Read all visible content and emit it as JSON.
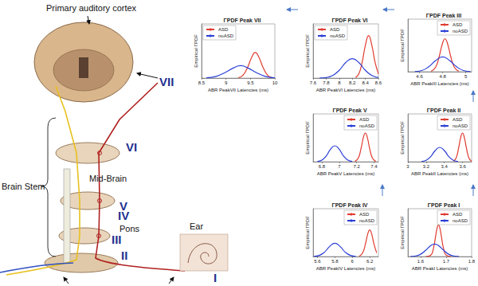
{
  "diagram": {
    "cortex_label": "Primary auditory cortex",
    "brain_stem": "Brain Stem",
    "mid_brain": "Mid-Brain",
    "pons": "Pons",
    "ear": "Ear",
    "levels": [
      "I",
      "II",
      "III",
      "IV",
      "V",
      "VI",
      "VII"
    ]
  },
  "chart_data": [
    {
      "type": "line",
      "title": "ΓPDF Peak VII",
      "x_label": "ABR PeakVII Latencies (ms)",
      "y_label": "Empirical ΓPDF",
      "xlim": [
        8.5,
        10
      ],
      "xticks": [
        8.5,
        9,
        9.5,
        10
      ],
      "ylim": [
        0,
        7
      ],
      "tick_labels": "x",
      "grid": false,
      "legend": "upper left",
      "series": [
        {
          "name": "ASD",
          "color": "#e03c31",
          "x": [
            9.25,
            9.35,
            9.45,
            9.52,
            9.6,
            9.68,
            9.75,
            9.85,
            9.95
          ],
          "values": [
            0.05,
            0.38,
            1.5,
            2.6,
            3.3,
            2.6,
            1.5,
            0.38,
            0.05
          ]
        },
        {
          "name": "noASD",
          "color": "#2b3fd6",
          "x": [
            8.6,
            8.8,
            9.0,
            9.15,
            9.3,
            9.45,
            9.6,
            9.8,
            10
          ],
          "values": [
            0.03,
            0.22,
            0.78,
            1.3,
            1.6,
            1.3,
            0.78,
            0.22,
            0.03
          ]
        }
      ]
    },
    {
      "type": "line",
      "title": "ΓPDF Peak VI",
      "x_label": "ABR PeakVI Latencies (ms)",
      "y_label": "Empirical ΓPDF",
      "xlim": [
        7.6,
        8.6
      ],
      "xticks": [
        7.6,
        7.8,
        8,
        8.2,
        8.4,
        8.6
      ],
      "ylim": [
        0,
        7
      ],
      "tick_labels": "x",
      "grid": false,
      "legend": "upper left",
      "series": [
        {
          "name": "ASD",
          "color": "#e03c31",
          "x": [
            8.25,
            8.3,
            8.35,
            8.4,
            8.45,
            8.5,
            8.55,
            8.6
          ],
          "values": [
            0.09,
            0.55,
            2.0,
            4.2,
            5.5,
            4.2,
            2.0,
            0.55
          ]
        },
        {
          "name": "noASD",
          "color": "#2b3fd6",
          "x": [
            7.7,
            7.8,
            7.9,
            8.0,
            8.1,
            8.2,
            8.3,
            8.4,
            8.5,
            8.6
          ],
          "values": [
            0.01,
            0.07,
            0.34,
            1.0,
            2.0,
            2.5,
            2.0,
            1.0,
            0.34,
            0.07
          ]
        }
      ]
    },
    {
      "type": "line",
      "title": "ΓPDF Peak III",
      "x_label": "ABR PeakIII Latencies (ms)",
      "y_label": "Empirical ΓPDF",
      "xlim": [
        4.5,
        5.05
      ],
      "xticks": [
        4.6,
        4.8,
        5
      ],
      "ylim": [
        0,
        16
      ],
      "tick_labels": "x",
      "grid": false,
      "legend": "upper right",
      "series": [
        {
          "name": "ASD",
          "color": "#e03c31",
          "x": [
            4.7,
            4.74,
            4.77,
            4.8,
            4.82,
            4.84,
            4.87,
            4.9,
            4.94
          ],
          "values": [
            0.1,
            1.4,
            4.6,
            8.8,
            10,
            8.8,
            4.6,
            1.4,
            0.1
          ]
        },
        {
          "name": "noASD",
          "color": "#2b3fd6",
          "x": [
            4.56,
            4.62,
            4.68,
            4.74,
            4.8,
            4.86,
            4.92,
            4.98,
            5.04
          ],
          "values": [
            0.05,
            0.36,
            1.5,
            3.4,
            4.5,
            3.4,
            1.5,
            0.36,
            0.05
          ]
        }
      ]
    },
    {
      "type": "line",
      "title": "ΓPDF Peak V",
      "x_label": "ABR PeakV Latencies (ms)",
      "y_label": "Empirical ΓPDF",
      "xlim": [
        6.7,
        7.45
      ],
      "xticks": [
        6.8,
        7,
        7.2,
        7.4
      ],
      "ylim": [
        0,
        15
      ],
      "tick_labels": "x",
      "grid": false,
      "legend": "upper right",
      "series": [
        {
          "name": "ASD",
          "color": "#e03c31",
          "x": [
            7.18,
            7.22,
            7.25,
            7.28,
            7.3,
            7.32,
            7.35,
            7.38,
            7.42
          ],
          "values": [
            0.1,
            1.2,
            4.1,
            7.9,
            9,
            7.9,
            4.1,
            1.2,
            0.1
          ]
        },
        {
          "name": "noASD",
          "color": "#2b3fd6",
          "x": [
            6.75,
            6.8,
            6.85,
            6.9,
            6.95,
            7.0,
            7.05,
            7.1,
            7.15
          ],
          "values": [
            0.08,
            0.5,
            1.8,
            3.9,
            5,
            3.9,
            1.8,
            0.5,
            0.08
          ]
        }
      ]
    },
    {
      "type": "line",
      "title": "ΓPDF Peak II",
      "x_label": "ABR PeakII Latencies (ms)",
      "y_label": "Empirical ΓPDF",
      "xlim": [
        3,
        3.7
      ],
      "xticks": [
        3,
        3.2,
        3.4,
        3.6
      ],
      "ylim": [
        0,
        15
      ],
      "tick_labels": "x",
      "grid": false,
      "legend": "upper right",
      "series": [
        {
          "name": "ASD",
          "color": "#e03c31",
          "x": [
            3.5,
            3.53,
            3.56,
            3.58,
            3.6,
            3.62,
            3.64,
            3.67,
            3.7
          ],
          "values": [
            0.15,
            1.2,
            4.7,
            7.6,
            9,
            7.6,
            4.7,
            1.2,
            0.15
          ]
        },
        {
          "name": "noASD",
          "color": "#2b3fd6",
          "x": [
            3.15,
            3.2,
            3.25,
            3.3,
            3.35,
            3.4,
            3.45,
            3.5,
            3.55
          ],
          "values": [
            0.1,
            0.45,
            1.6,
            3.5,
            4.5,
            3.5,
            1.6,
            0.45,
            0.1
          ]
        }
      ]
    },
    {
      "type": "line",
      "title": "ΓPDF Peak IV",
      "x_label": "ABR PeakIV Latencies (ms)",
      "y_label": "Empirical ΓPDF",
      "xlim": [
        5.55,
        6.3
      ],
      "xticks": [
        5.6,
        5.8,
        6,
        6.2
      ],
      "ylim": [
        0,
        18
      ],
      "tick_labels": "x",
      "grid": false,
      "legend": "upper right",
      "series": [
        {
          "name": "ASD",
          "color": "#e03c31",
          "x": [
            6.08,
            6.12,
            6.15,
            6.18,
            6.2,
            6.22,
            6.25,
            6.28
          ],
          "values": [
            0.1,
            1.4,
            4.6,
            8.8,
            10,
            8.8,
            4.6,
            1.4
          ]
        },
        {
          "name": "noASD",
          "color": "#2b3fd6",
          "x": [
            5.56,
            5.62,
            5.68,
            5.74,
            5.8,
            5.86,
            5.92,
            5.98,
            6.04
          ],
          "values": [
            0.05,
            0.4,
            1.6,
            3.8,
            5,
            3.8,
            1.6,
            0.4,
            0.05
          ]
        }
      ]
    },
    {
      "type": "line",
      "title": "ΓPDF Peak I",
      "x_label": "ABR PeakI Latencies (ms)",
      "y_label": "Empirical ΓPDF",
      "xlim": [
        1.55,
        1.8
      ],
      "xticks": [
        1.6,
        1.7,
        1.8
      ],
      "ylim": [
        0,
        50
      ],
      "tick_labels": "x",
      "grid": false,
      "legend": "upper right",
      "series": [
        {
          "name": "ASD",
          "color": "#e03c31",
          "x": [
            1.62,
            1.64,
            1.65,
            1.66,
            1.665,
            1.67,
            1.675,
            1.68,
            1.69,
            1.7,
            1.72
          ],
          "values": [
            0,
            1.5,
            8.2,
            23.3,
            30.3,
            33,
            30.3,
            23.3,
            8.2,
            1.5,
            0
          ]
        },
        {
          "name": "noASD",
          "color": "#2b3fd6",
          "x": [
            1.56,
            1.58,
            1.6,
            1.62,
            1.64,
            1.655,
            1.67,
            1.69,
            1.71,
            1.73,
            1.75
          ],
          "values": [
            0.1,
            0.6,
            2.4,
            6.6,
            11.5,
            13,
            11.5,
            6.6,
            2.4,
            0.6,
            0.1
          ]
        }
      ]
    }
  ]
}
